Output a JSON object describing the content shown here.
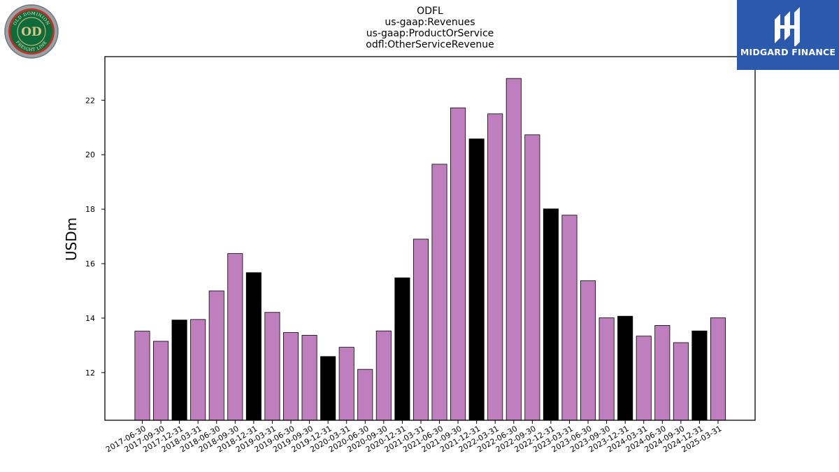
{
  "logo_left": {
    "name": "Old Dominion Freight Line seal",
    "text_top": "OLD DOMINION",
    "text_bottom": "FREIGHT LINE",
    "monogram": "OD",
    "colors": {
      "ring": "#8a8f96",
      "field": "#0f6b3a",
      "accent": "#b8342b",
      "gold": "#d9c48a"
    }
  },
  "logo_right": {
    "name": "Midgard Finance logo",
    "text": "MIDGARD FINANCE",
    "background": "#2b5aad"
  },
  "chart_data": {
    "type": "bar",
    "title_lines": [
      "ODFL",
      "us-gaap:Revenues",
      "us-gaap:ProductOrService",
      "odfl:OtherServiceRevenue"
    ],
    "xlabel": "",
    "ylabel": "USDm",
    "ylim": [
      10.25,
      23.6
    ],
    "yticks": [
      12,
      14,
      16,
      18,
      20,
      22
    ],
    "grid": false,
    "colors": {
      "quarter": "#bf7fbf",
      "year_end": "#000000"
    },
    "categories": [
      "2017-06-30",
      "2017-09-30",
      "2017-12-31",
      "2018-03-31",
      "2018-06-30",
      "2018-09-30",
      "2018-12-31",
      "2019-03-31",
      "2019-06-30",
      "2019-09-30",
      "2019-12-31",
      "2020-03-31",
      "2020-06-30",
      "2020-09-30",
      "2020-12-31",
      "2021-03-31",
      "2021-06-30",
      "2021-09-30",
      "2021-12-31",
      "2022-03-31",
      "2022-06-30",
      "2022-09-30",
      "2022-12-31",
      "2023-03-31",
      "2023-06-30",
      "2023-09-30",
      "2023-12-31",
      "2024-03-31",
      "2024-06-30",
      "2024-09-30",
      "2024-12-31",
      "2025-03-31"
    ],
    "values": [
      13.52,
      13.15,
      13.93,
      13.95,
      15.0,
      16.37,
      15.67,
      14.21,
      13.47,
      13.37,
      12.59,
      12.93,
      12.12,
      13.53,
      15.48,
      16.9,
      19.65,
      21.72,
      20.58,
      21.5,
      22.8,
      20.73,
      18.01,
      17.78,
      15.37,
      14.01,
      14.07,
      13.34,
      13.73,
      13.1,
      13.53,
      14.01
    ],
    "year_end": [
      false,
      false,
      true,
      false,
      false,
      false,
      true,
      false,
      false,
      false,
      true,
      false,
      false,
      false,
      true,
      false,
      false,
      false,
      true,
      false,
      false,
      false,
      true,
      false,
      false,
      false,
      true,
      false,
      false,
      false,
      true,
      false
    ]
  }
}
